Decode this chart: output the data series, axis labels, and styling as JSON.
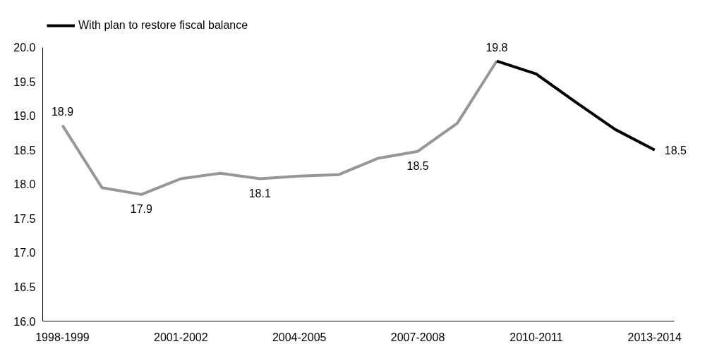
{
  "chart_data": {
    "type": "line",
    "categories": [
      "1998-1999",
      null,
      null,
      "2001-2002",
      null,
      null,
      "2004-2005",
      null,
      null,
      "2007-2008",
      null,
      null,
      "2010-2011",
      null,
      null,
      "2013-2014"
    ],
    "series": [
      {
        "color": "#969696",
        "values": [
          18.86,
          17.95,
          17.85,
          18.08,
          18.16,
          18.08,
          18.12,
          18.14,
          18.38,
          18.48,
          18.89,
          19.8,
          null,
          null,
          null,
          null
        ],
        "value_labels": [
          "18.9",
          null,
          "17.9",
          null,
          null,
          "18.1",
          null,
          null,
          null,
          "18.5",
          null,
          null,
          null,
          null,
          null,
          null
        ]
      },
      {
        "name": "With plan to restore fiscal balance",
        "color": "#000000",
        "values": [
          null,
          null,
          null,
          null,
          null,
          null,
          null,
          null,
          null,
          null,
          null,
          19.8,
          19.61,
          19.2,
          18.8,
          18.5
        ],
        "value_labels": [
          null,
          null,
          null,
          null,
          null,
          null,
          null,
          null,
          null,
          null,
          null,
          "19.8",
          null,
          null,
          null,
          "18.5"
        ]
      }
    ],
    "ylim": [
      16.0,
      20.0
    ],
    "yticks": [
      "16.0",
      "16.5",
      "17.0",
      "17.5",
      "18.0",
      "18.5",
      "19.0",
      "19.5",
      "20.0"
    ],
    "grid": false,
    "legend": "top left",
    "marker": "none",
    "line_style": "solid"
  }
}
